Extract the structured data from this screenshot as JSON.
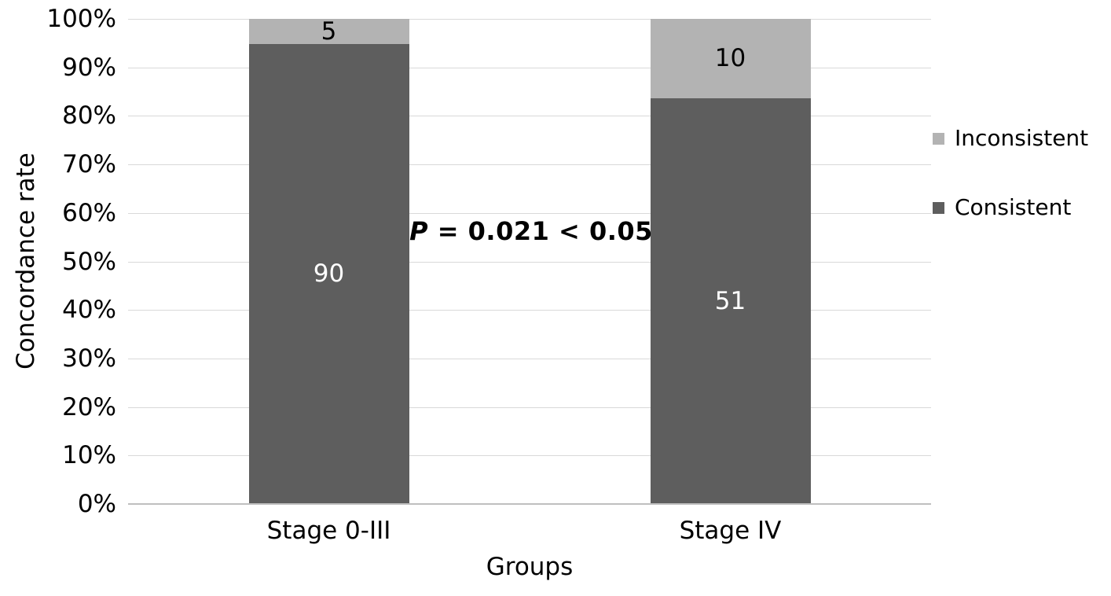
{
  "chart_data": {
    "type": "bar",
    "subtype": "stacked-100-percent",
    "title": "",
    "xlabel": "Groups",
    "ylabel": "Concordance rate",
    "categories": [
      "Stage 0-III",
      "Stage IV"
    ],
    "series": [
      {
        "name": "Consistent",
        "values": [
          90,
          51
        ],
        "color": "#5e5e5e",
        "label_color": "#ffffff"
      },
      {
        "name": "Inconsistent",
        "values": [
          5,
          10
        ],
        "color": "#b3b3b3",
        "label_color": "#000000"
      }
    ],
    "segment_percentages": {
      "Stage 0-III": {
        "Consistent": 94.7,
        "Inconsistent": 5.3
      },
      "Stage IV": {
        "Consistent": 83.6,
        "Inconsistent": 16.4
      }
    },
    "y_ticks": [
      "0%",
      "10%",
      "20%",
      "30%",
      "40%",
      "50%",
      "60%",
      "70%",
      "80%",
      "90%",
      "100%"
    ],
    "ylim": [
      0,
      100
    ],
    "grid": true,
    "legend_position": "right",
    "legend_items": [
      {
        "label": "Inconsistent",
        "color": "#b3b3b3"
      },
      {
        "label": "Consistent",
        "color": "#5e5e5e"
      }
    ],
    "annotation": {
      "p_symbol": "P",
      "comparison": " = 0.021 < 0.05",
      "full_text": "P = 0.021 < 0.05"
    }
  },
  "colors": {
    "background": "#ffffff",
    "gridline": "#d9d9d9",
    "axis_line": "#bfbfbf",
    "text": "#000000"
  }
}
